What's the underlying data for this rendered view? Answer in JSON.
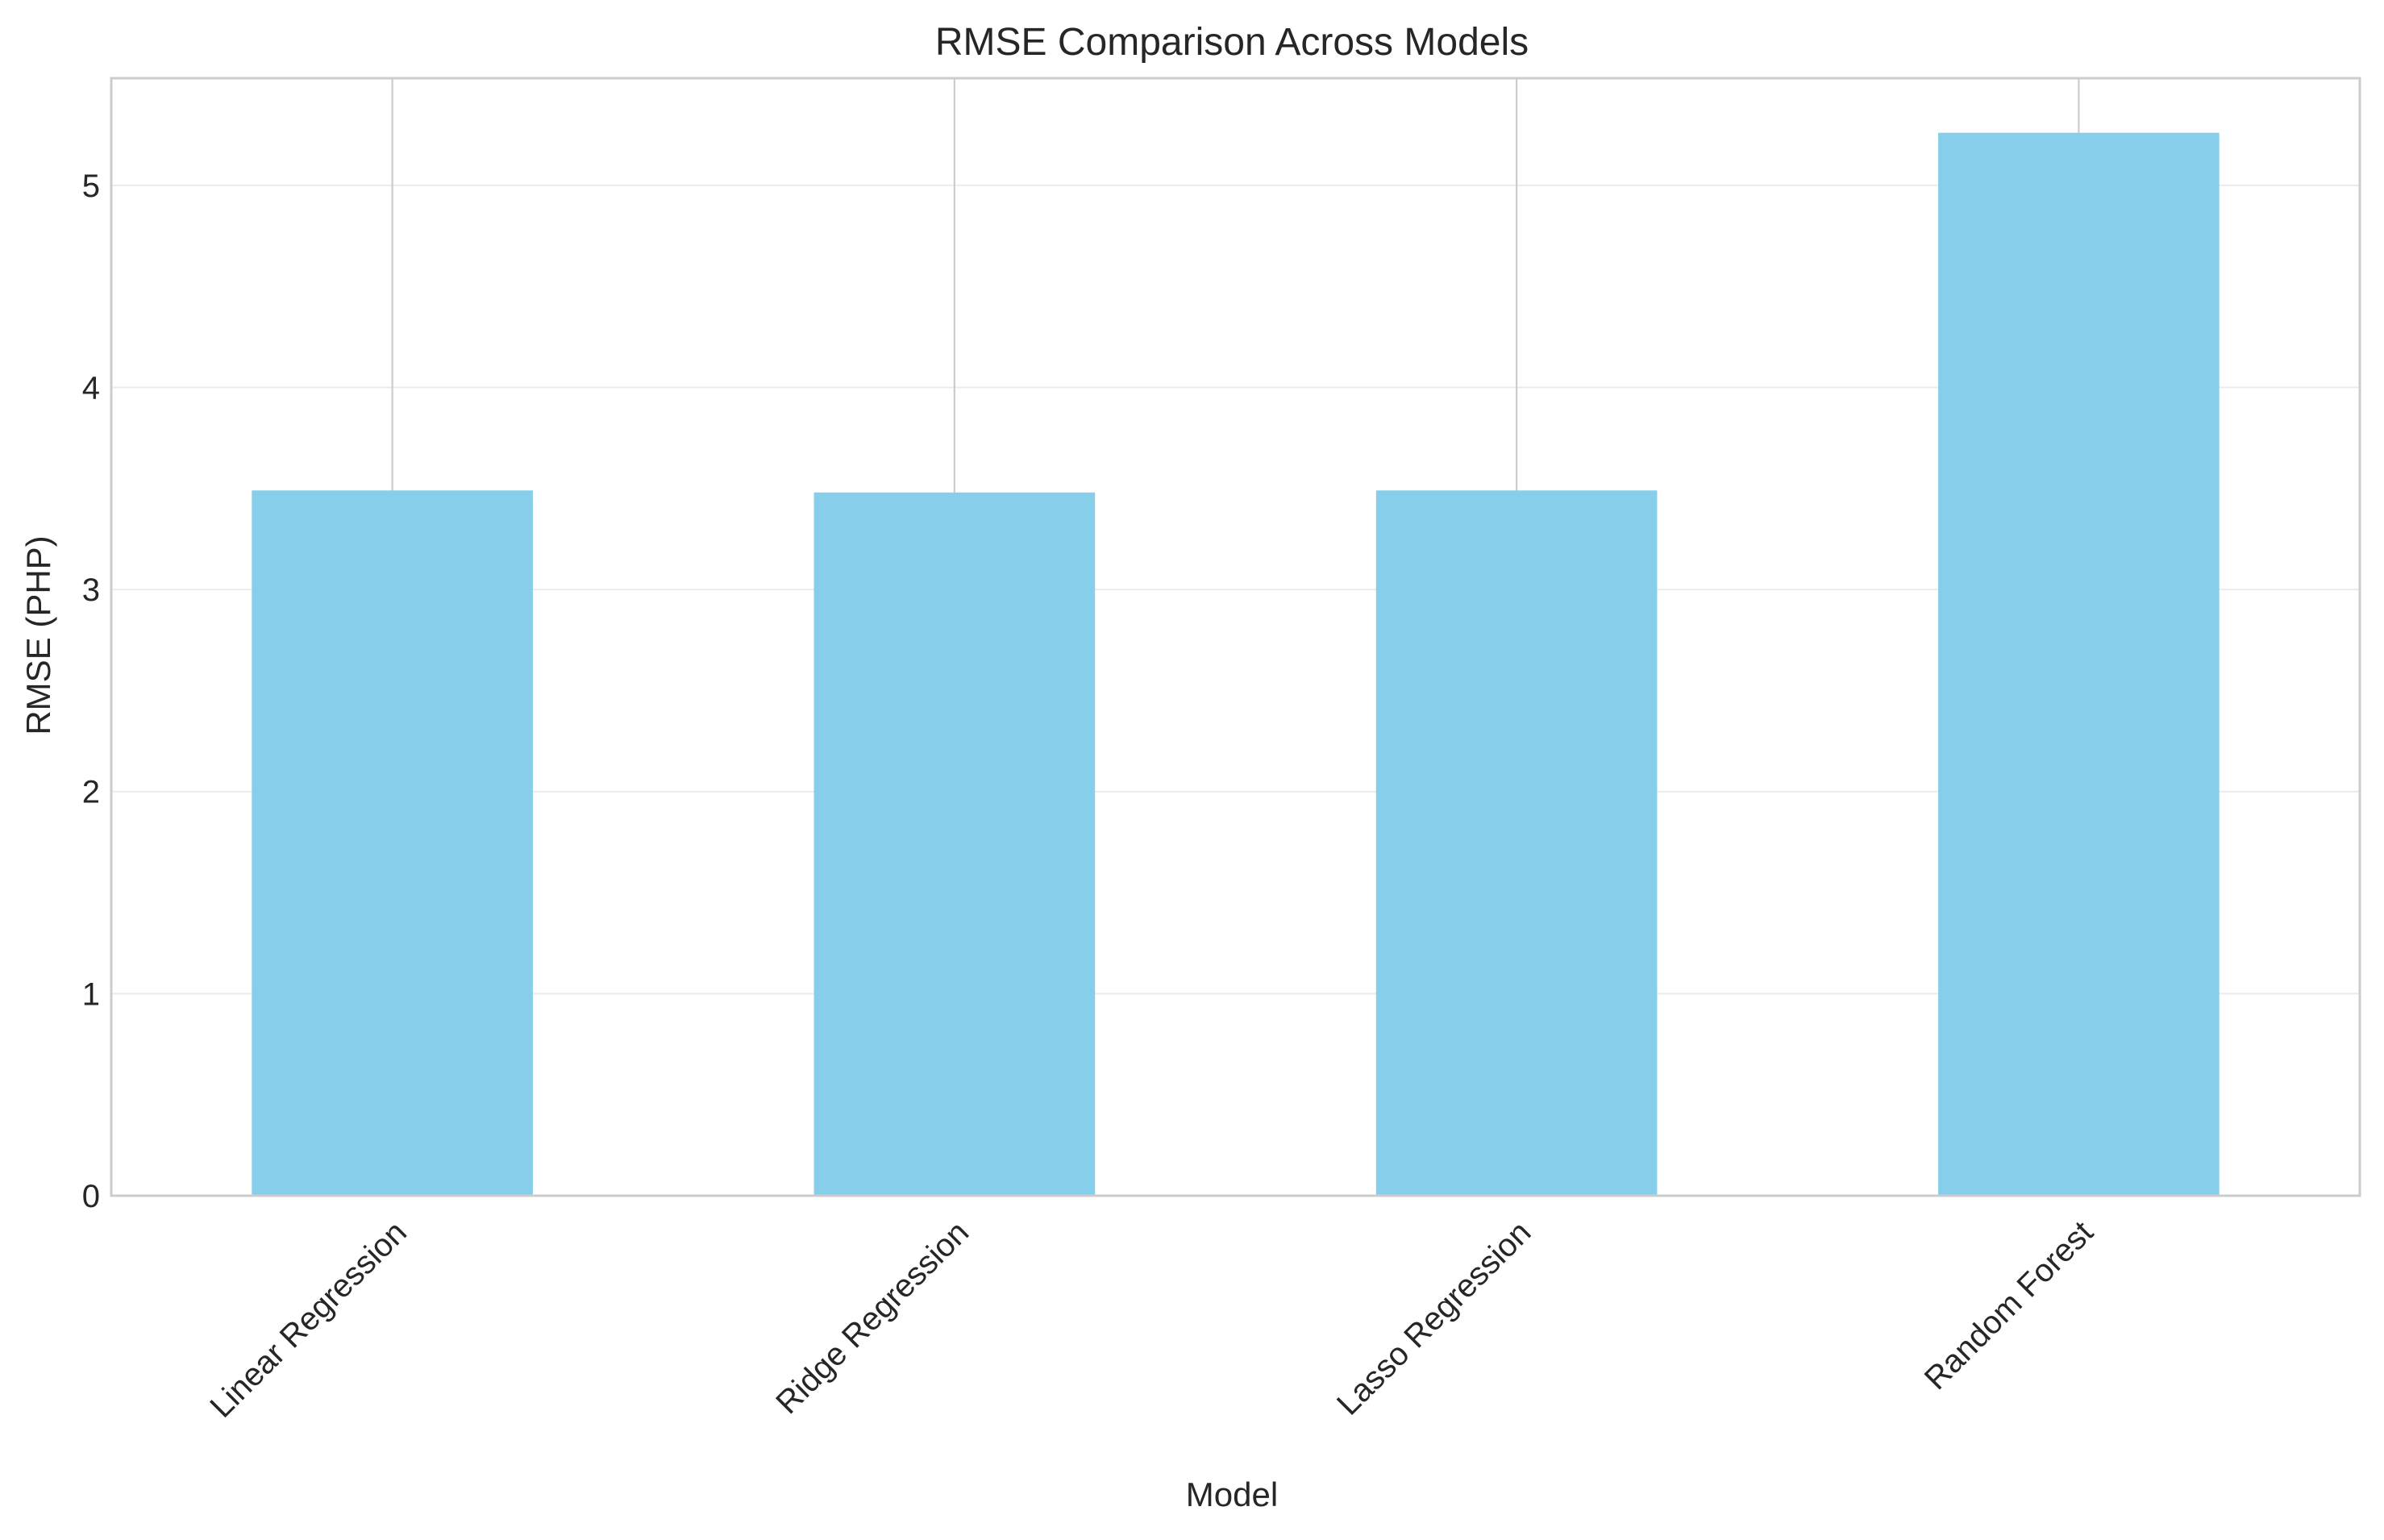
{
  "chart_data": {
    "type": "bar",
    "title": "RMSE Comparison Across Models",
    "xlabel": "Model",
    "ylabel": "RMSE (PHP)",
    "categories": [
      "Linear Regression",
      "Ridge Regression",
      "Lasso Regression",
      "Random Forest"
    ],
    "values": [
      3.49,
      3.48,
      3.49,
      5.26
    ],
    "ylim": [
      0,
      5.53
    ],
    "yticks": [
      0,
      1,
      2,
      3,
      4,
      5
    ],
    "grid": true,
    "legend": "none",
    "tick_rotation": 45,
    "colors": {
      "bar": "#87ceeb",
      "text": "#262626",
      "frame": "#cccccc",
      "grid": "#ebebeb"
    }
  }
}
